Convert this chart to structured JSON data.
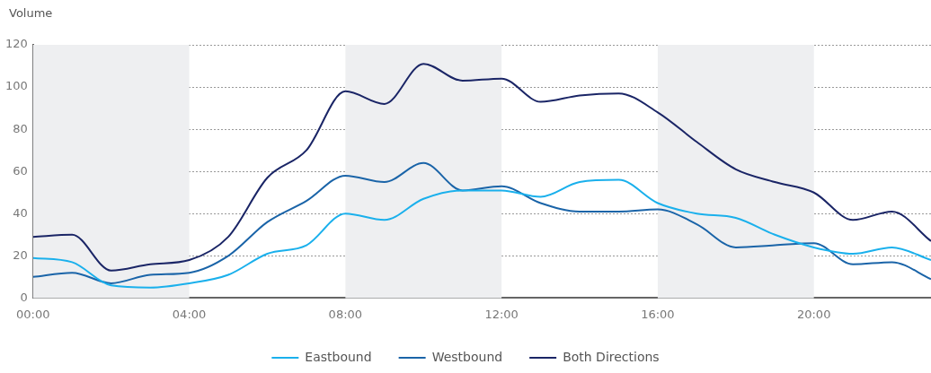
{
  "chart_data": {
    "type": "line",
    "ylabel": "Volume",
    "x": [
      0,
      1,
      2,
      3,
      4,
      5,
      6,
      7,
      8,
      9,
      10,
      11,
      12,
      13,
      14,
      15,
      16,
      17,
      18,
      19,
      20,
      21,
      22,
      23
    ],
    "series": [
      {
        "name": "Eastbound",
        "color": "#1ab0ec",
        "values": [
          19,
          17,
          6,
          5,
          7,
          11,
          21,
          25,
          40,
          37,
          47,
          51,
          51,
          48,
          55,
          56,
          45,
          40,
          38,
          30,
          24,
          21,
          24,
          18
        ]
      },
      {
        "name": "Westbound",
        "color": "#1a64a8",
        "values": [
          10,
          12,
          7,
          11,
          12,
          20,
          36,
          46,
          58,
          55,
          64,
          51,
          53,
          45,
          41,
          41,
          42,
          35,
          24,
          25,
          26,
          16,
          17,
          9
        ]
      },
      {
        "name": "Both Directions",
        "color": "#1a2566",
        "values": [
          29,
          30,
          13,
          16,
          18,
          29,
          57,
          70,
          98,
          92,
          111,
          103,
          104,
          93,
          96,
          97,
          88,
          74,
          61,
          55,
          50,
          37,
          41,
          27
        ]
      }
    ],
    "xlim": [
      0,
      23
    ],
    "xticks": [
      {
        "value": 0,
        "label": "00:00"
      },
      {
        "value": 4,
        "label": "04:00"
      },
      {
        "value": 8,
        "label": "08:00"
      },
      {
        "value": 12,
        "label": "12:00"
      },
      {
        "value": 16,
        "label": "16:00"
      },
      {
        "value": 20,
        "label": "20:00"
      }
    ],
    "ylim": [
      0,
      120
    ],
    "yticks": [
      0,
      20,
      40,
      60,
      80,
      100,
      120
    ],
    "bands": [
      {
        "axis": "x",
        "from": 0,
        "to": 4,
        "color": "#eeeff1"
      },
      {
        "axis": "x",
        "from": 8,
        "to": 12,
        "color": "#eeeff1"
      },
      {
        "axis": "x",
        "from": 16,
        "to": 20,
        "color": "#eeeff1"
      }
    ],
    "grid": "y",
    "legend": "bottom",
    "marker": "none",
    "line_style": "solid"
  }
}
